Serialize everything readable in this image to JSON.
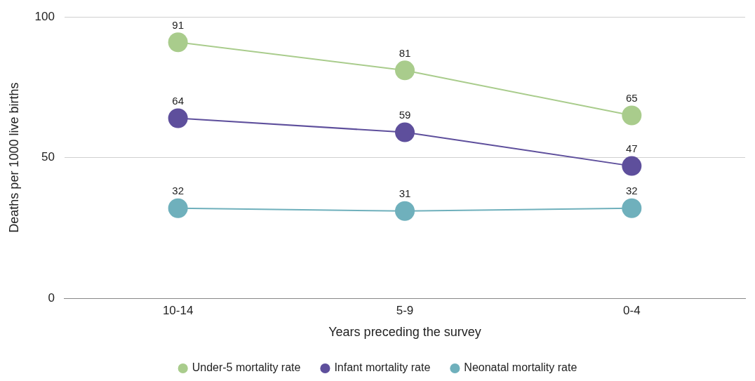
{
  "chart_data": {
    "type": "line",
    "xlabel": "Years preceding the survey",
    "ylabel": "Deaths per 1000 live births",
    "categories": [
      "10-14",
      "5-9",
      "0-4"
    ],
    "series": [
      {
        "name": "Under-5 mortality rate",
        "color": "#a9cc8c",
        "values": [
          91,
          81,
          65
        ]
      },
      {
        "name": "Infant mortality rate",
        "color": "#5e4f9c",
        "values": [
          64,
          59,
          47
        ]
      },
      {
        "name": "Neonatal mortality rate",
        "color": "#6fb0bc",
        "values": [
          32,
          31,
          32
        ]
      }
    ],
    "ylim": [
      0,
      100
    ],
    "yticks": [
      0,
      50,
      100
    ],
    "grid": "y",
    "legend": "bottom",
    "marker": "circle",
    "line_style": "solid",
    "data_labels": true
  }
}
